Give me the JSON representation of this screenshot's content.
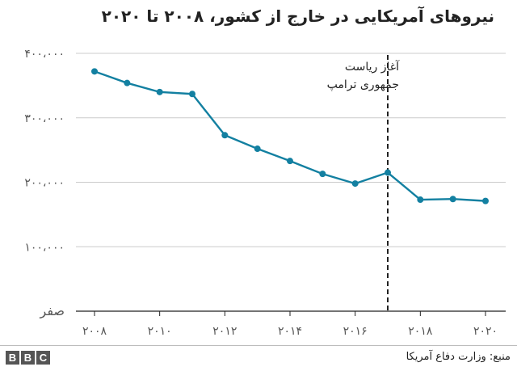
{
  "chart_data": {
    "type": "line",
    "title": "نیروهای آمریکایی در خارج از کشور، ۲۰۰۸ تا ۲۰۲۰",
    "x": [
      2008,
      2009,
      2010,
      2011,
      2012,
      2013,
      2014,
      2015,
      2016,
      2017,
      2018,
      2019,
      2020
    ],
    "series": [
      {
        "values": [
          372000,
          354000,
          340000,
          337000,
          273000,
          252000,
          233000,
          213000,
          198000,
          215000,
          173000,
          174000,
          171000
        ]
      }
    ],
    "xticks": [
      2008,
      2010,
      2012,
      2014,
      2016,
      2018,
      2020
    ],
    "xtick_labels": [
      "۲۰۰۸",
      "۲۰۱۰",
      "۲۰۱۲",
      "۲۰۱۴",
      "۲۰۱۶",
      "۲۰۱۸",
      "۲۰۲۰"
    ],
    "yticks": [
      0,
      100000,
      200000,
      300000,
      400000
    ],
    "ytick_labels": [
      "صفر",
      "۱۰۰،۰۰۰",
      "۲۰۰،۰۰۰",
      "۳۰۰،۰۰۰",
      "۴۰۰،۰۰۰"
    ],
    "ylim": [
      0,
      400000
    ],
    "xlim": [
      2008,
      2020
    ],
    "grid": true,
    "annotation": {
      "x": 2017,
      "lines": [
        "آغاز ریاست",
        "جمهوری ترامپ"
      ],
      "style": "dashed"
    },
    "colors": {
      "line": "#1380a1",
      "grid": "#cccccc",
      "axis": "#222222",
      "annotation": "#222222"
    }
  },
  "footer": {
    "logo_letters": [
      "B",
      "B",
      "C"
    ],
    "source": "منبع: وزارت دفاع آمریکا"
  }
}
